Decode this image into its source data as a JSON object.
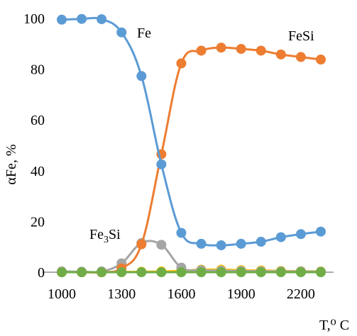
{
  "chart_data": {
    "type": "line",
    "title": "",
    "xlabel": "T,⁰ C",
    "ylabel": "αFe, %",
    "xlim": [
      1000,
      2300
    ],
    "ylim": [
      0,
      100
    ],
    "xticks": [
      1000,
      1300,
      1600,
      1900,
      2200
    ],
    "yticks": [
      0,
      20,
      40,
      60,
      80,
      100
    ],
    "grid": false,
    "legend": "none",
    "x": [
      1000,
      1100,
      1200,
      1300,
      1400,
      1500,
      1600,
      1700,
      1800,
      1900,
      2000,
      2100,
      2200,
      2300
    ],
    "series": [
      {
        "name": "Fe",
        "color": "#5B9BD5",
        "values": [
          99.5,
          99.8,
          99.7,
          94.5,
          77.3,
          42.5,
          15.5,
          11.2,
          10.6,
          11.2,
          12.0,
          13.8,
          15.0,
          16.0
        ]
      },
      {
        "name": "FeSi",
        "color": "#ED7D31",
        "values": [
          0,
          0,
          0,
          1.5,
          11.0,
          46.5,
          82.3,
          87.3,
          88.5,
          88.0,
          87.3,
          85.8,
          84.8,
          83.8
        ]
      },
      {
        "name": "Fe₃Si",
        "color": "#A5A5A5",
        "values": [
          0.3,
          0.2,
          0.3,
          3.5,
          11.5,
          10.8,
          1.8,
          0.8,
          0.6,
          0.5,
          0.4,
          0.3,
          0.3,
          0.2
        ]
      },
      {
        "name": "",
        "color": "#FFC000",
        "values": [
          0,
          0,
          0,
          0.1,
          0.2,
          0.3,
          0.6,
          1.0,
          1.0,
          0.8,
          0.7,
          0.5,
          0.4,
          0.3
        ]
      },
      {
        "name": "",
        "color": "#70AD47",
        "values": [
          0,
          0,
          0,
          0,
          0,
          0,
          0,
          0,
          0,
          0,
          0,
          0,
          0,
          0
        ]
      }
    ]
  }
}
